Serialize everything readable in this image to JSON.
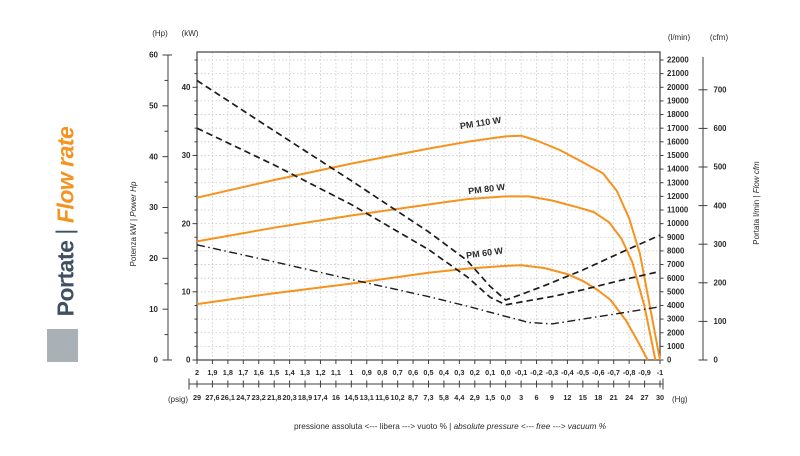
{
  "brand": {
    "title_it": "Portate",
    "separator": "|",
    "title_en": "Flow rate",
    "color_dark": "#3E5062",
    "color_accent": "#F6921E",
    "square_color": "#A9B0B6"
  },
  "chart_data": {
    "type": "line",
    "x_axis": {
      "description": "gauge pressure bar (top row) with psig / inches Hg vacuum equivalents (bottom row)",
      "bar_ticks": [
        "2",
        "1,9",
        "1,8",
        "1,7",
        "1,6",
        "1,5",
        "1,4",
        "1,3",
        "1,2",
        "1,1",
        "1",
        "0,9",
        "0,8",
        "0,7",
        "0,6",
        "0,5",
        "0,4",
        "0,3",
        "0,2",
        "0,1",
        "0,0",
        "-0,1",
        "-0,2",
        "-0,3",
        "-0,4",
        "-0,5",
        "-0,6",
        "-0,7",
        "-0,8",
        "-0,9",
        "-1"
      ],
      "psig_hg_ticks": [
        "29",
        "27,6",
        "26,1",
        "24,7",
        "23,2",
        "21,8",
        "20,3",
        "18,9",
        "17,4",
        "16",
        "14,5",
        "13,1",
        "11,6",
        "10,2",
        "8,7",
        "7,3",
        "5,8",
        "4,4",
        "2,9",
        "1,5",
        "0,0",
        "3",
        "6",
        "9",
        "12",
        "15",
        "18",
        "21",
        "24",
        "27",
        "30"
      ],
      "unit_left": "(psig)",
      "unit_right": "(Hg)",
      "caption_it": "pressione assoluta <--- libera ---> vuoto %",
      "caption_separator": " | ",
      "caption_en": "absolute pressure <--- free ---> vacuum %"
    },
    "y_left_axes": {
      "hp": {
        "unit": "(Hp)",
        "min": 0,
        "max": 60,
        "label_step": 10,
        "minor_step": 5
      },
      "kw": {
        "unit": "(kW)",
        "min": 0,
        "max": 40,
        "label_step": 10,
        "minor_step": 2,
        "minor_max": 44
      },
      "title_it": "Potenza kW",
      "title_separator": " | ",
      "title_en": "Power Hp"
    },
    "y_right_axes": {
      "lmin": {
        "unit": "(l/min)",
        "min": 0,
        "max": 22000,
        "label_step": 1000
      },
      "cfm": {
        "unit": "(cfm)",
        "min": 0,
        "max": 700,
        "label_step": 100
      },
      "title_it": "Portata l/min",
      "title_separator": " | ",
      "title_en": "Flow cfm"
    },
    "series": [
      {
        "id": "flow-pm110",
        "name": "PM 110 W",
        "quantity": "flow",
        "unit": "l/min",
        "style": "solid",
        "points": [
          [
            2,
            11900
          ],
          [
            1.5,
            13200
          ],
          [
            1,
            14400
          ],
          [
            0.5,
            15500
          ],
          [
            0.25,
            16000
          ],
          [
            0,
            16400
          ],
          [
            -0.1,
            16450
          ],
          [
            -0.2,
            16100
          ],
          [
            -0.35,
            15400
          ],
          [
            -0.5,
            14500
          ],
          [
            -0.63,
            13700
          ],
          [
            -0.72,
            12400
          ],
          [
            -0.8,
            10400
          ],
          [
            -0.87,
            7800
          ],
          [
            -0.93,
            4200
          ],
          [
            -1,
            0
          ]
        ]
      },
      {
        "id": "flow-pm80",
        "name": "PM 80 W",
        "quantity": "flow",
        "unit": "l/min",
        "style": "solid",
        "points": [
          [
            2,
            8700
          ],
          [
            1.5,
            9700
          ],
          [
            1,
            10600
          ],
          [
            0.5,
            11400
          ],
          [
            0.25,
            11800
          ],
          [
            0,
            12000
          ],
          [
            -0.15,
            12000
          ],
          [
            -0.3,
            11700
          ],
          [
            -0.45,
            11250
          ],
          [
            -0.57,
            10850
          ],
          [
            -0.67,
            10100
          ],
          [
            -0.75,
            8900
          ],
          [
            -0.82,
            7200
          ],
          [
            -0.9,
            3900
          ],
          [
            -0.97,
            0
          ]
        ]
      },
      {
        "id": "flow-pm60",
        "name": "PM 60 W",
        "quantity": "flow",
        "unit": "l/min",
        "style": "solid",
        "points": [
          [
            2,
            4100
          ],
          [
            1.5,
            4900
          ],
          [
            1,
            5600
          ],
          [
            0.5,
            6400
          ],
          [
            0.25,
            6700
          ],
          [
            0,
            6900
          ],
          [
            -0.1,
            6950
          ],
          [
            -0.25,
            6750
          ],
          [
            -0.4,
            6300
          ],
          [
            -0.5,
            5800
          ],
          [
            -0.6,
            5100
          ],
          [
            -0.68,
            4400
          ],
          [
            -0.78,
            2900
          ],
          [
            -0.85,
            1500
          ],
          [
            -0.92,
            0
          ]
        ]
      },
      {
        "id": "power-pm110",
        "name": "PM 110 W",
        "quantity": "power",
        "unit": "kW",
        "style": "dashed",
        "points": [
          [
            2,
            41
          ],
          [
            1.5,
            33.6
          ],
          [
            1,
            26.3
          ],
          [
            0.5,
            18.8
          ],
          [
            0.25,
            14.6
          ],
          [
            0.1,
            10.8
          ],
          [
            0,
            8.8
          ],
          [
            -0.1,
            9.6
          ],
          [
            -0.25,
            10.9
          ],
          [
            -0.5,
            13.2
          ],
          [
            -0.75,
            15.8
          ],
          [
            -1,
            18.3
          ]
        ]
      },
      {
        "id": "power-pm80",
        "name": "PM 80 W",
        "quantity": "power",
        "unit": "kW",
        "style": "dashed",
        "points": [
          [
            2,
            34
          ],
          [
            1.5,
            28.6
          ],
          [
            1,
            22.8
          ],
          [
            0.5,
            16.2
          ],
          [
            0.25,
            12.2
          ],
          [
            0.1,
            9.2
          ],
          [
            0,
            8.1
          ],
          [
            -0.1,
            8.5
          ],
          [
            -0.3,
            9.3
          ],
          [
            -0.5,
            10.3
          ],
          [
            -0.75,
            11.7
          ],
          [
            -1,
            13
          ]
        ]
      },
      {
        "id": "power-pm60",
        "name": "PM 60 W",
        "quantity": "power",
        "unit": "kW",
        "style": "dashdot",
        "points": [
          [
            2,
            16.9
          ],
          [
            1.5,
            14.4
          ],
          [
            1,
            11.8
          ],
          [
            0.5,
            9.3
          ],
          [
            0.25,
            7.9
          ],
          [
            0,
            6.4
          ],
          [
            -0.15,
            5.5
          ],
          [
            -0.3,
            5.3
          ],
          [
            -0.5,
            6.0
          ],
          [
            -0.75,
            6.9
          ],
          [
            -1,
            7.8
          ]
        ]
      }
    ],
    "curve_labels": [
      {
        "text": "PM 110 W",
        "x": 481,
        "y": 126,
        "rotate": -9
      },
      {
        "text": "PM 80 W",
        "x": 487,
        "y": 192,
        "rotate": -7
      },
      {
        "text": "PM 60 W",
        "x": 485,
        "y": 256,
        "rotate": -8
      }
    ],
    "colors": {
      "flow": "#F6921E",
      "power": "#1C1C1C",
      "grid": "#C7C7C7",
      "axis": "#3F3F3F",
      "text": "#2A2A2A"
    }
  }
}
